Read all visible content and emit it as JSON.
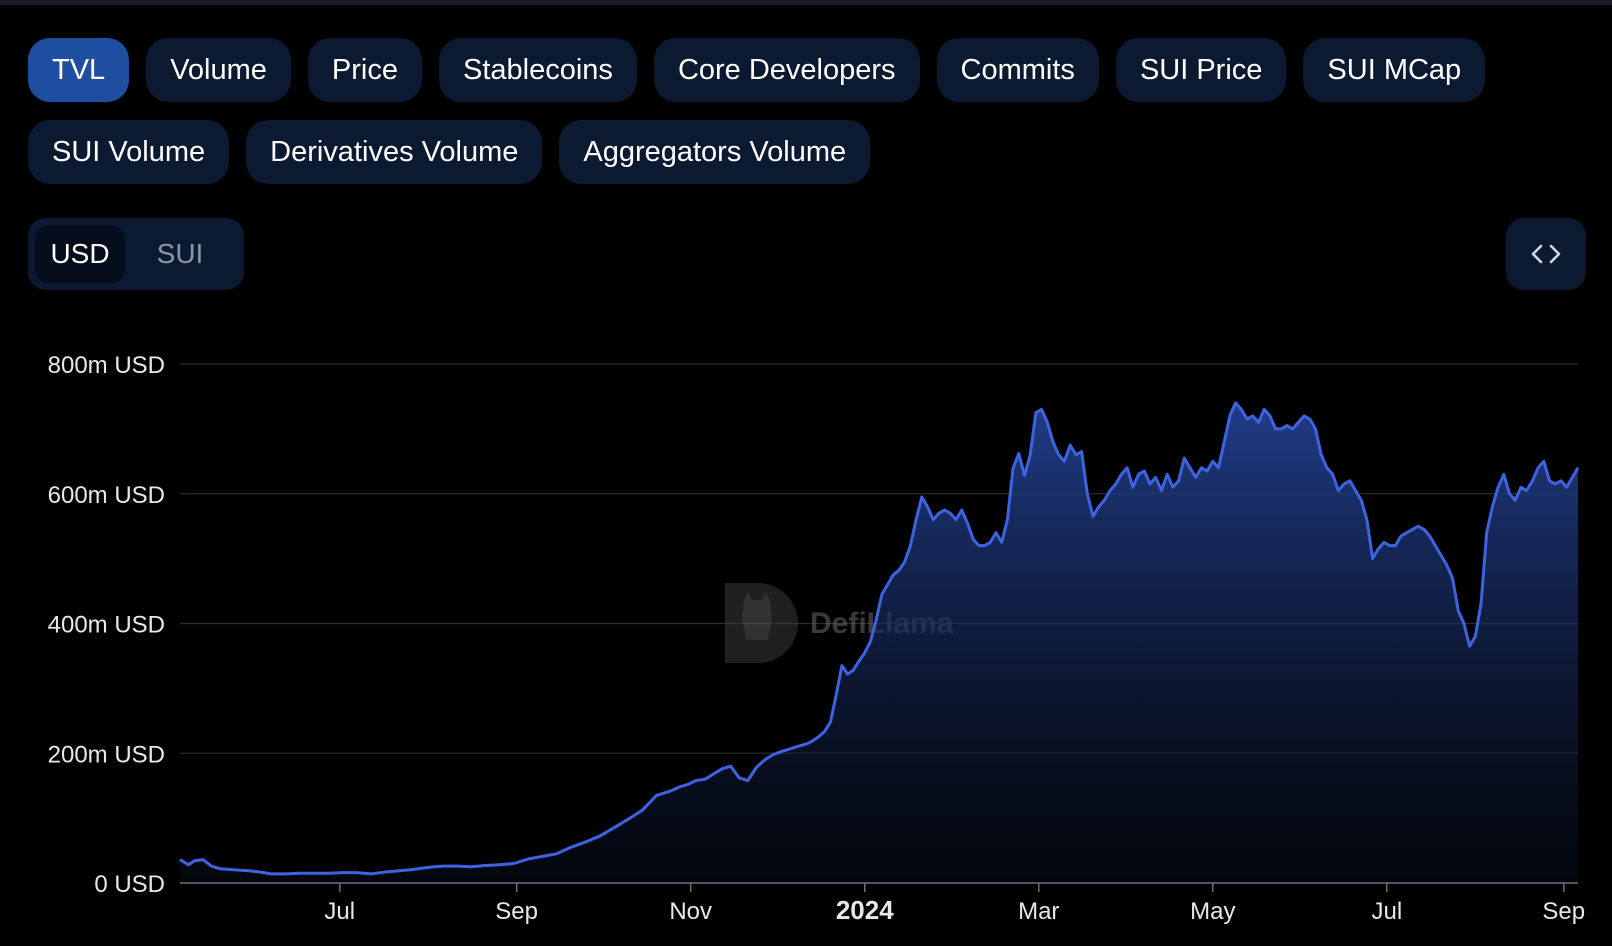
{
  "metric_tabs": [
    "TVL",
    "Volume",
    "Price",
    "Stablecoins",
    "Core Developers",
    "Commits",
    "SUI Price",
    "SUI MCap",
    "SUI Volume",
    "Derivatives Volume",
    "Aggregators Volume"
  ],
  "active_tab": "TVL",
  "unit_toggle": {
    "selected": "USD",
    "other": "SUI"
  },
  "embed_icon": "code-brackets-icon",
  "watermark": {
    "text": "DefiLlama",
    "icon": "llama-logo-icon"
  },
  "colors": {
    "line": "#3d63e0",
    "area_top": "#22408f",
    "grid": "#2a2d33",
    "axis_text": "#e6e8ec",
    "tab_bg": "#0b1a30",
    "tab_active": "#1e4ea0"
  },
  "chart_data": {
    "type": "area",
    "title": "",
    "xlabel": "",
    "ylabel": "",
    "ylim": [
      0,
      800
    ],
    "grid": true,
    "y_ticks": [
      0,
      200,
      400,
      600,
      800
    ],
    "y_tick_labels": [
      "0 USD",
      "200m USD",
      "400m USD",
      "600m USD",
      "800m USD"
    ],
    "x_tick_labels": [
      "Jul",
      "Sep",
      "Nov",
      "2024",
      "Mar",
      "May",
      "Jul",
      "Sep"
    ],
    "x_tick_positions": [
      64,
      126,
      187,
      248,
      309,
      370,
      431,
      493
    ],
    "bold_tick_labels": [
      "2024"
    ],
    "x_range": [
      8,
      498
    ],
    "series": [
      {
        "name": "TVL (m USD)",
        "x": [
          8,
          11,
          13,
          16,
          19,
          22,
          25,
          28,
          32,
          36,
          40,
          45,
          50,
          55,
          60,
          65,
          70,
          75,
          80,
          85,
          90,
          95,
          100,
          105,
          110,
          115,
          120,
          125,
          130,
          135,
          140,
          145,
          150,
          155,
          160,
          165,
          170,
          175,
          180,
          183,
          186,
          189,
          192,
          195,
          198,
          201,
          204,
          207,
          210,
          213,
          216,
          219,
          222,
          225,
          228,
          230,
          232,
          234,
          236,
          238,
          240,
          242,
          244,
          246,
          248,
          250,
          252,
          254,
          256,
          258,
          260,
          262,
          264,
          266,
          268,
          270,
          272,
          274,
          276,
          278,
          280,
          282,
          284,
          286,
          288,
          290,
          292,
          294,
          296,
          298,
          300,
          302,
          304,
          306,
          308,
          310,
          312,
          314,
          316,
          318,
          320,
          322,
          324,
          326,
          328,
          330,
          332,
          334,
          336,
          338,
          340,
          342,
          344,
          346,
          348,
          350,
          352,
          354,
          356,
          358,
          360,
          362,
          364,
          366,
          368,
          370,
          372,
          374,
          376,
          378,
          380,
          382,
          384,
          386,
          388,
          390,
          392,
          394,
          396,
          398,
          400,
          402,
          404,
          406,
          408,
          410,
          412,
          414,
          416,
          418,
          420,
          422,
          424,
          426,
          428,
          430,
          432,
          434,
          436,
          438,
          440,
          442,
          444,
          446,
          448,
          450,
          452,
          454,
          456,
          458,
          460,
          462,
          464,
          466,
          468,
          470,
          472,
          474,
          476,
          478,
          480,
          482,
          484,
          486,
          488,
          490,
          492,
          494,
          496,
          498
        ],
        "values": [
          36,
          28,
          34,
          36,
          26,
          22,
          21,
          20,
          19,
          17,
          14,
          14,
          15,
          15,
          15,
          16,
          16,
          14,
          17,
          19,
          21,
          24,
          26,
          26,
          25,
          27,
          28,
          30,
          37,
          41,
          45,
          55,
          63,
          72,
          85,
          98,
          112,
          135,
          142,
          148,
          152,
          158,
          160,
          168,
          176,
          180,
          162,
          158,
          178,
          190,
          198,
          203,
          207,
          211,
          215,
          220,
          226,
          234,
          248,
          290,
          335,
          322,
          328,
          342,
          355,
          372,
          405,
          445,
          460,
          475,
          482,
          495,
          520,
          560,
          595,
          580,
          560,
          570,
          575,
          570,
          560,
          575,
          555,
          530,
          520,
          520,
          525,
          540,
          525,
          560,
          640,
          662,
          628,
          660,
          725,
          730,
          710,
          680,
          660,
          650,
          675,
          660,
          665,
          600,
          565,
          580,
          590,
          605,
          615,
          630,
          640,
          610,
          630,
          635,
          615,
          625,
          605,
          630,
          610,
          620,
          655,
          640,
          625,
          640,
          635,
          650,
          640,
          680,
          720,
          740,
          730,
          715,
          720,
          710,
          730,
          720,
          700,
          700,
          705,
          700,
          710,
          720,
          715,
          700,
          660,
          640,
          630,
          605,
          615,
          620,
          605,
          590,
          560,
          500,
          515,
          525,
          520,
          520,
          535,
          540,
          545,
          550,
          545,
          535,
          520,
          505,
          490,
          470,
          420,
          400,
          365,
          380,
          430,
          540,
          580,
          610,
          630,
          600,
          590,
          610,
          605,
          620,
          640,
          650,
          620,
          615,
          620,
          610,
          625,
          640
        ]
      }
    ]
  }
}
